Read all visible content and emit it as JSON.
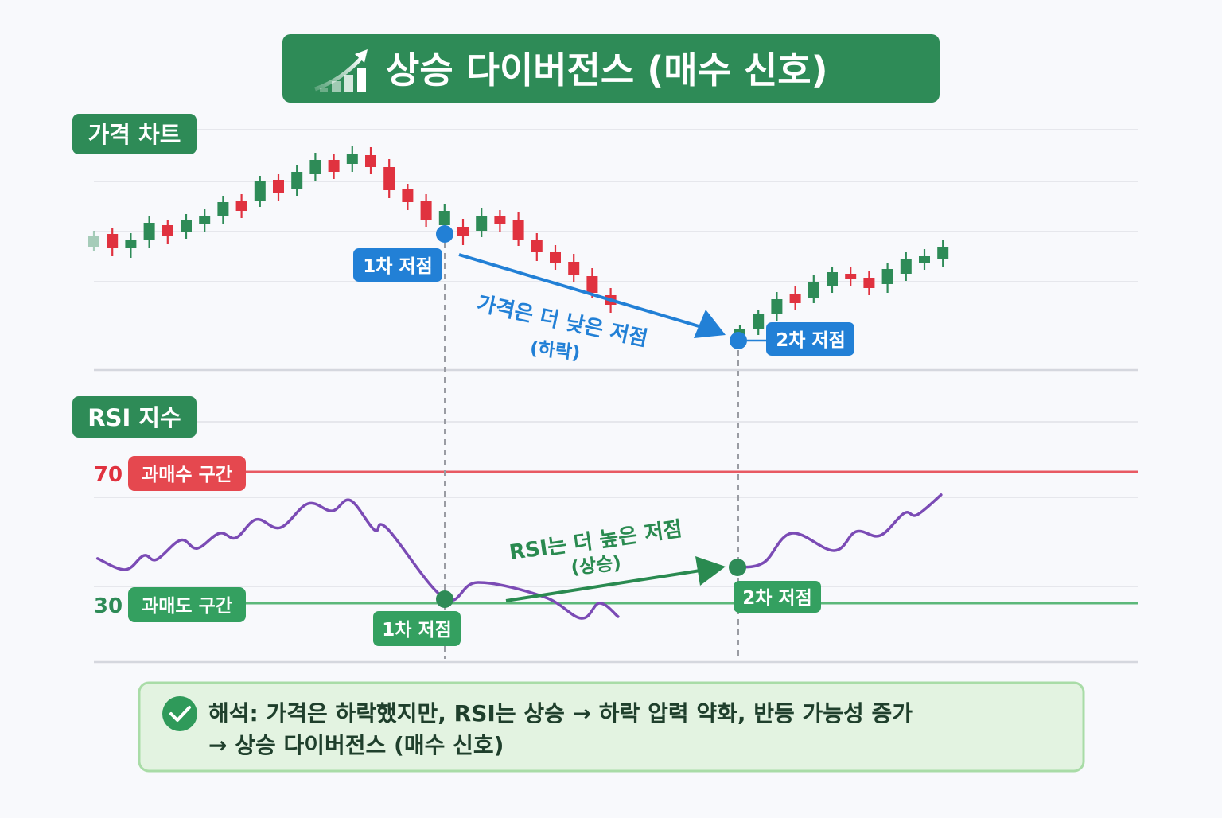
{
  "title": {
    "text": "상승 다이버전스 (매수 신호)",
    "icon": "trending-up-bars-icon"
  },
  "colors": {
    "green": "#2e8b57",
    "red": "#e0323f",
    "blue": "#2280d6",
    "purple": "#7b4bb5",
    "box_bg": "#e3f3e1",
    "box_border": "#a9dca7"
  },
  "price_panel": {
    "label": "가격 차트",
    "low1_label": "1차 저점",
    "low2_label": "2차 저점",
    "trend_text": "가격은 더 낮은 저점",
    "trend_sub": "(하락)"
  },
  "rsi_panel": {
    "label": "RSI 지수",
    "overbought_value": "70",
    "overbought_label": "과매수 구간",
    "oversold_value": "30",
    "oversold_label": "과매도 구간",
    "low1_label": "1차 저점",
    "low2_label": "2차 저점",
    "trend_text": "RSI는 더 높은 저점",
    "trend_sub": "(상승)"
  },
  "interpretation": {
    "icon": "check-circle-icon",
    "line1": "해석: 가격은 하락했지만, RSI는 상승 → 하락 압력 약화, 반등 가능성 증가",
    "line2": "→ 상승 다이버전스 (매수 신호)"
  },
  "chart_data": [
    {
      "type": "candlestick",
      "title": "가격 차트",
      "y_units": "relative price (no axis printed)",
      "ylim": [
        0,
        300
      ],
      "up_color": "#2e8b57",
      "down_color": "#e0323f",
      "grid": true,
      "candles": [
        {
          "x": 0,
          "o": 155,
          "h": 175,
          "l": 149,
          "c": 168
        },
        {
          "x": 1,
          "o": 171,
          "h": 179,
          "l": 143,
          "c": 153
        },
        {
          "x": 2,
          "o": 153,
          "h": 172,
          "l": 141,
          "c": 164
        },
        {
          "x": 3,
          "o": 164,
          "h": 194,
          "l": 153,
          "c": 185
        },
        {
          "x": 4,
          "o": 182,
          "h": 188,
          "l": 158,
          "c": 168
        },
        {
          "x": 5,
          "o": 174,
          "h": 196,
          "l": 165,
          "c": 188
        },
        {
          "x": 6,
          "o": 184,
          "h": 202,
          "l": 174,
          "c": 194
        },
        {
          "x": 7,
          "o": 194,
          "h": 219,
          "l": 184,
          "c": 211
        },
        {
          "x": 8,
          "o": 213,
          "h": 221,
          "l": 191,
          "c": 200
        },
        {
          "x": 9,
          "o": 213,
          "h": 244,
          "l": 205,
          "c": 238
        },
        {
          "x": 10,
          "o": 239,
          "h": 246,
          "l": 212,
          "c": 223
        },
        {
          "x": 11,
          "o": 228,
          "h": 258,
          "l": 219,
          "c": 249
        },
        {
          "x": 12,
          "o": 246,
          "h": 273,
          "l": 238,
          "c": 264
        },
        {
          "x": 13,
          "o": 264,
          "h": 271,
          "l": 240,
          "c": 249
        },
        {
          "x": 14,
          "o": 259,
          "h": 281,
          "l": 249,
          "c": 272
        },
        {
          "x": 15,
          "o": 270,
          "h": 280,
          "l": 246,
          "c": 255
        },
        {
          "x": 16,
          "o": 255,
          "h": 265,
          "l": 216,
          "c": 226
        },
        {
          "x": 17,
          "o": 227,
          "h": 234,
          "l": 201,
          "c": 211
        },
        {
          "x": 18,
          "o": 213,
          "h": 221,
          "l": 180,
          "c": 188
        },
        {
          "x": 19,
          "o": 182,
          "h": 208,
          "l": 174,
          "c": 200
        },
        {
          "x": 20,
          "o": 180,
          "h": 190,
          "l": 157,
          "c": 169
        },
        {
          "x": 21,
          "o": 175,
          "h": 203,
          "l": 167,
          "c": 194
        },
        {
          "x": 22,
          "o": 193,
          "h": 201,
          "l": 174,
          "c": 183
        },
        {
          "x": 23,
          "o": 189,
          "h": 199,
          "l": 156,
          "c": 163
        },
        {
          "x": 24,
          "o": 163,
          "h": 172,
          "l": 137,
          "c": 148
        },
        {
          "x": 25,
          "o": 148,
          "h": 157,
          "l": 126,
          "c": 135
        },
        {
          "x": 26,
          "o": 136,
          "h": 146,
          "l": 111,
          "c": 120
        },
        {
          "x": 27,
          "o": 118,
          "h": 128,
          "l": 90,
          "c": 97
        },
        {
          "x": 28,
          "o": 94,
          "h": 103,
          "l": 72,
          "c": 82
        },
        {
          "x": 35,
          "o": 41,
          "h": 57,
          "l": 36,
          "c": 51
        },
        {
          "x": 36,
          "o": 51,
          "h": 76,
          "l": 44,
          "c": 70
        },
        {
          "x": 37,
          "o": 70,
          "h": 98,
          "l": 62,
          "c": 89
        },
        {
          "x": 38,
          "o": 96,
          "h": 105,
          "l": 75,
          "c": 84
        },
        {
          "x": 39,
          "o": 91,
          "h": 119,
          "l": 84,
          "c": 111
        },
        {
          "x": 40,
          "o": 106,
          "h": 130,
          "l": 97,
          "c": 123
        },
        {
          "x": 41,
          "o": 121,
          "h": 130,
          "l": 106,
          "c": 114
        },
        {
          "x": 42,
          "o": 116,
          "h": 125,
          "l": 94,
          "c": 103
        },
        {
          "x": 43,
          "o": 108,
          "h": 134,
          "l": 97,
          "c": 127
        },
        {
          "x": 44,
          "o": 121,
          "h": 148,
          "l": 112,
          "c": 139
        },
        {
          "x": 45,
          "o": 134,
          "h": 152,
          "l": 126,
          "c": 143
        },
        {
          "x": 46,
          "o": 139,
          "h": 163,
          "l": 130,
          "c": 154
        }
      ],
      "lows": [
        {
          "x": 19,
          "y": 171,
          "label": "1차 저점"
        },
        {
          "x": 35,
          "y": 37,
          "label": "2차 저점"
        }
      ]
    },
    {
      "type": "line",
      "title": "RSI 지수",
      "series_color": "#7b4bb5",
      "ylim": [
        12,
        75
      ],
      "levels": [
        {
          "value": 70,
          "label": "과매수 구간",
          "color": "#e0323f"
        },
        {
          "value": 30,
          "label": "과매도 구간",
          "color": "#2e8b57"
        }
      ],
      "segments": [
        {
          "x": [
            0.2,
            1.7,
            2.7,
            3.4,
            4.7,
            5.6,
            6.8,
            7.7,
            8.8,
            10.1,
            11.6,
            12.9,
            13.9,
            15.2,
            15.9,
            19.0,
            20.8,
            24.4,
            26.4,
            27.4,
            28.4
          ],
          "y": [
            43.6,
            40.2,
            44.5,
            43.3,
            49.2,
            46.7,
            51.3,
            49.9,
            55.5,
            53.0,
            60.3,
            58.1,
            61.3,
            52.3,
            52.7,
            31.5,
            36.3,
            31.9,
            25.4,
            30.0,
            25.9
          ]
        },
        {
          "x": [
            34.9,
            36.3,
            37.8,
            40.1,
            41.3,
            42.6,
            43.9,
            44.6,
            45.9
          ],
          "y": [
            40.9,
            42.4,
            51.3,
            46.0,
            51.8,
            50.6,
            57.4,
            56.9,
            63.0
          ]
        }
      ],
      "lows": [
        {
          "x": 19,
          "y": 31.5,
          "label": "1차 저점"
        },
        {
          "x": 34.9,
          "y": 40.9,
          "label": "2차 저점"
        }
      ]
    }
  ]
}
